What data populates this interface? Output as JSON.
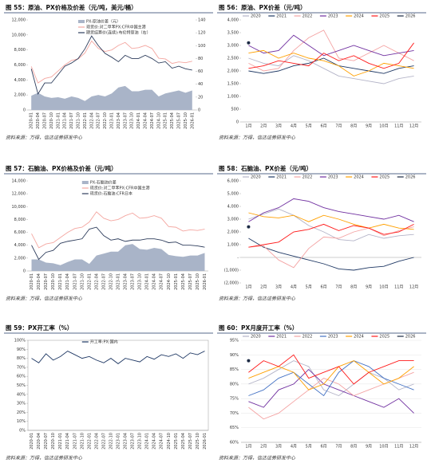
{
  "chart_data": [
    {
      "type": "line",
      "title": "图 55：原油、PX价格及价差（元/吨，美元/桶）",
      "source": "资料来源：万得，信达证券研发中心",
      "legend": "upper center",
      "grid": false,
      "categories": [
        "2020-01",
        "2020-04",
        "2020-07",
        "2020-10",
        "2021-01",
        "2021-04",
        "2021-07",
        "2021-10",
        "2022-01",
        "2022-04",
        "2022-07",
        "2022-10",
        "2023-01",
        "2023-04",
        "2023-07",
        "2023-10",
        "2024-01",
        "2024-04",
        "2024-07",
        "2024-10",
        "2025-01",
        "2025-04",
        "2025-07",
        "2025-10",
        "2026-01"
      ],
      "ylim": [
        0,
        12000
      ],
      "yticks": [
        0,
        {
          "value": 2000,
          "label": "2,000"
        },
        {
          "value": 4000,
          "label": "4,000"
        },
        {
          "value": 6000,
          "label": "6,000"
        },
        {
          "value": 8000,
          "label": "8,000"
        },
        {
          "value": 10000,
          "label": "10,000"
        },
        {
          "value": 12000,
          "label": "12,000"
        }
      ],
      "y2lim": [
        0,
        140
      ],
      "y2ticks": [
        0,
        20,
        40,
        60,
        80,
        100,
        120,
        140
      ],
      "series": [
        {
          "name": "PX-原油价差（元）",
          "type": "area",
          "color": "#a9b4c8",
          "values": [
            1900,
            2300,
            1800,
            1600,
            1700,
            1500,
            1800,
            1600,
            1200,
            1800,
            2000,
            1800,
            2200,
            3000,
            3200,
            2500,
            2500,
            2700,
            2700,
            1800,
            2200,
            2400,
            2600,
            2300,
            2600
          ]
        },
        {
          "name": "现货价:对二甲苯PX:CFR中国主港",
          "color": "#f4a6a0",
          "values": [
            5800,
            3600,
            4200,
            4400,
            5200,
            6000,
            6600,
            6800,
            7600,
            9200,
            8200,
            7800,
            8000,
            8600,
            9000,
            8200,
            8300,
            8600,
            8200,
            6900,
            6800,
            6200,
            6400,
            6300,
            6500
          ]
        },
        {
          "name": "期货结算价(连续):布伦特原油（右）",
          "color": "#2e3d5c",
          "axis": "y2",
          "values": [
            64,
            25,
            42,
            42,
            55,
            68,
            73,
            80,
            95,
            115,
            100,
            88,
            82,
            75,
            85,
            80,
            80,
            85,
            80,
            73,
            75,
            65,
            68,
            64,
            62
          ]
        }
      ]
    },
    {
      "type": "line",
      "title": "图 56：原油、PX价差（元/吨）",
      "source": "资料来源：万得，信达证券研发中心",
      "legend": "top",
      "grid": false,
      "categories": [
        "1月",
        "2月",
        "3月",
        "4月",
        "5月",
        "6月",
        "7月",
        "8月",
        "9月",
        "10月",
        "11月",
        "12月"
      ],
      "ylim": [
        0,
        4000
      ],
      "yticks": [
        0,
        500,
        {
          "value": 1000,
          "label": "1,000"
        },
        {
          "value": 1500,
          "label": "1,500"
        },
        {
          "value": 2000,
          "label": "2,000"
        },
        {
          "value": 2500,
          "label": "2,500"
        },
        {
          "value": 3000,
          "label": "3,000"
        },
        {
          "value": 3500,
          "label": "3,500"
        },
        {
          "value": 4000,
          "label": "4,000"
        }
      ],
      "series": [
        {
          "name": "2020",
          "color": "#b4b4c8",
          "values": [
            2500,
            2300,
            2200,
            2600,
            2400,
            2100,
            1800,
            1700,
            1600,
            1500,
            1700,
            1800
          ]
        },
        {
          "name": "2021",
          "color": "#1f3864",
          "values": [
            2000,
            1900,
            2000,
            2200,
            2300,
            2500,
            2200,
            2100,
            2000,
            1900,
            2100,
            2200
          ]
        },
        {
          "name": "2022",
          "color": "#f4a3a3",
          "values": [
            2300,
            2000,
            2100,
            2800,
            3300,
            3600,
            2500,
            2400,
            2700,
            3000,
            2700,
            2400
          ]
        },
        {
          "name": "2023",
          "color": "#7030a0",
          "values": [
            3000,
            2700,
            2800,
            3400,
            3000,
            2600,
            2800,
            3000,
            2800,
            2600,
            2700,
            2800
          ]
        },
        {
          "name": "2024",
          "color": "#ffa000",
          "values": [
            2700,
            2800,
            2500,
            2700,
            2500,
            2400,
            2200,
            1800,
            2000,
            2300,
            2200,
            2100
          ]
        },
        {
          "name": "2025",
          "color": "#ff1a1a",
          "values": [
            2100,
            2200,
            2400,
            2300,
            2200,
            2700,
            2400,
            2600,
            2300,
            2100,
            2300,
            3100
          ]
        },
        {
          "name": "2026",
          "color": "#1c2a44",
          "values": [
            3100,
            null,
            null,
            null,
            null,
            null,
            null,
            null,
            null,
            null,
            null,
            null
          ]
        }
      ]
    },
    {
      "type": "line",
      "title": "图 57：石脑油、PX价格及价差（元/吨）",
      "source": "资料来源：万得，信达证券研发中心",
      "legend": "upper center",
      "grid": false,
      "categories": [
        "2020-01",
        "2020-04",
        "2020-07",
        "2020-10",
        "2021-01",
        "2021-04",
        "2021-07",
        "2021-10",
        "2022-01",
        "2022-04",
        "2022-07",
        "2022-10",
        "2023-01",
        "2023-04",
        "2023-07",
        "2023-10",
        "2024-01",
        "2024-04",
        "2024-07",
        "2024-10",
        "2025-01",
        "2025-04",
        "2025-07",
        "2025-10",
        "2026-01"
      ],
      "ylim": [
        0,
        14000
      ],
      "yticks": [
        0,
        {
          "value": 2000,
          "label": "2,000"
        },
        {
          "value": 4000,
          "label": "4,000"
        },
        {
          "value": 6000,
          "label": "6,000"
        },
        {
          "value": 8000,
          "label": "8,000"
        },
        {
          "value": 10000,
          "label": "10,000"
        },
        {
          "value": 12000,
          "label": "12,000"
        },
        {
          "value": 14000,
          "label": "14,000"
        }
      ],
      "series": [
        {
          "name": "PX-石脑油价差",
          "type": "area",
          "color": "#a9b4c8",
          "values": [
            1800,
            1800,
            1300,
            1200,
            900,
            1400,
            1800,
            1800,
            1100,
            2400,
            2700,
            3000,
            3000,
            4000,
            4200,
            3400,
            3300,
            3600,
            3400,
            2500,
            2300,
            2200,
            2400,
            2400,
            2800
          ]
        },
        {
          "name": "现货价:对二甲苯PX:CFR中国主港",
          "color": "#f4a6a0",
          "values": [
            5800,
            3600,
            4200,
            4400,
            5200,
            6000,
            6600,
            6800,
            7600,
            9200,
            8200,
            7800,
            8000,
            8600,
            9000,
            8200,
            8300,
            8600,
            8200,
            6900,
            6800,
            6200,
            6400,
            6300,
            6500
          ]
        },
        {
          "name": "现货价:石脑油:CFR日本",
          "color": "#2e3d5c",
          "values": [
            4000,
            1800,
            2900,
            3200,
            4300,
            4600,
            4800,
            5000,
            6500,
            6800,
            5500,
            4800,
            5000,
            4600,
            4800,
            4800,
            5000,
            5000,
            4800,
            4400,
            4500,
            4000,
            4000,
            3900,
            3700
          ]
        }
      ]
    },
    {
      "type": "line",
      "title": "图 58：石脑油、PX价差（元/吨）",
      "source": "资料来源：万得，信达证券研发中心",
      "legend": "top",
      "grid": false,
      "categories": [
        "1月",
        "2月",
        "3月",
        "4月",
        "5月",
        "6月",
        "7月",
        "8月",
        "9月",
        "10月",
        "11月",
        "12月"
      ],
      "ylim": [
        -2000,
        6000
      ],
      "yticks": [
        {
          "value": -2000,
          "label": "(2,000)"
        },
        {
          "value": -1000,
          "label": "(1,000)"
        },
        {
          "value": 0,
          "label": "-"
        },
        {
          "value": 1000,
          "label": "1,000"
        },
        {
          "value": 2000,
          "label": "2,000"
        },
        {
          "value": 3000,
          "label": "3,000"
        },
        {
          "value": 4000,
          "label": "4,000"
        },
        {
          "value": 5000,
          "label": "5,000"
        },
        {
          "value": 6000,
          "label": "6,000"
        }
      ],
      "series": [
        {
          "name": "2020",
          "color": "#b4b4c8",
          "values": [
            3000,
            3400,
            3800,
            3300,
            2500,
            2000,
            1400,
            1300,
            1800,
            1500,
            1700,
            1800
          ]
        },
        {
          "name": "2021",
          "color": "#1f3864",
          "values": [
            1500,
            800,
            400,
            100,
            -200,
            -500,
            -900,
            -1000,
            -800,
            -700,
            -300,
            0
          ]
        },
        {
          "name": "2022",
          "color": "#f4a3a3",
          "values": [
            800,
            900,
            -200,
            -800,
            700,
            1600,
            1500,
            2000,
            2300,
            1700,
            2100,
            2400
          ]
        },
        {
          "name": "2023",
          "color": "#7030a0",
          "values": [
            2800,
            3500,
            3900,
            4600,
            4400,
            3900,
            3600,
            3400,
            3200,
            3000,
            3300,
            2800
          ]
        },
        {
          "name": "2024",
          "color": "#ffa000",
          "values": [
            3500,
            3200,
            3100,
            3300,
            2800,
            3300,
            3000,
            2600,
            2300,
            2600,
            2300,
            2200
          ]
        },
        {
          "name": "2025",
          "color": "#ff1a1a",
          "values": [
            800,
            1000,
            1200,
            2000,
            2200,
            2600,
            2100,
            2500,
            2300,
            1800,
            2000,
            2600
          ]
        },
        {
          "name": "2026",
          "color": "#1c2a44",
          "values": [
            2400,
            null,
            null,
            null,
            null,
            null,
            null,
            null,
            null,
            null,
            null,
            null
          ]
        }
      ]
    },
    {
      "type": "line",
      "title": "图 59：PX开工率（%）",
      "source": "资料来源：万得，信达证券研发中心",
      "legend": "upper center",
      "grid": false,
      "frame": true,
      "categories": [
        "2020-01",
        "2020-04",
        "2020-07",
        "2020-10",
        "2021-01",
        "2021-04",
        "2021-07",
        "2021-10",
        "2022-01",
        "2022-04",
        "2022-07",
        "2022-10",
        "2023-01",
        "2023-04",
        "2023-07",
        "2023-10",
        "2024-01",
        "2024-04",
        "2024-07",
        "2024-10",
        "2025-01",
        "2025-04",
        "2025-07",
        "2025-10",
        "2026-01"
      ],
      "ylim": [
        0,
        100
      ],
      "yticks": [
        {
          "value": 0,
          "label": "0%"
        },
        {
          "value": 10,
          "label": "10%"
        },
        {
          "value": 20,
          "label": "20%"
        },
        {
          "value": 30,
          "label": "30%"
        },
        {
          "value": 40,
          "label": "40%"
        },
        {
          "value": 50,
          "label": "50%"
        },
        {
          "value": 60,
          "label": "60%"
        },
        {
          "value": 70,
          "label": "70%"
        },
        {
          "value": 80,
          "label": "80%"
        },
        {
          "value": 90,
          "label": "90%"
        },
        {
          "value": 100,
          "label": "100%"
        }
      ],
      "series": [
        {
          "name": "开工率:PX:国内",
          "color": "#1f3864",
          "values": [
            80,
            75,
            85,
            78,
            82,
            88,
            84,
            80,
            82,
            78,
            75,
            80,
            74,
            80,
            78,
            76,
            82,
            79,
            84,
            82,
            85,
            80,
            86,
            84,
            88
          ]
        }
      ]
    },
    {
      "type": "line",
      "title": "图 60：PX月度开工率（%）",
      "source": "资料来源：万得，信达证券研发中心",
      "legend": "top",
      "grid": true,
      "categories": [
        "1月",
        "2月",
        "3月",
        "4月",
        "5月",
        "6月",
        "7月",
        "8月",
        "9月",
        "10月",
        "11月",
        "12月"
      ],
      "ylim": [
        60,
        95
      ],
      "yticks": [
        {
          "value": 60,
          "label": "60%"
        },
        {
          "value": 65,
          "label": "65%"
        },
        {
          "value": 70,
          "label": "70%"
        },
        {
          "value": 75,
          "label": "75%"
        },
        {
          "value": 80,
          "label": "80%"
        },
        {
          "value": 85,
          "label": "85%"
        },
        {
          "value": 90,
          "label": "90%"
        },
        {
          "value": 95,
          "label": "95%"
        }
      ],
      "series": [
        {
          "name": "2020",
          "color": "#b4b4c8",
          "values": [
            80,
            82,
            85,
            88,
            86,
            78,
            76,
            80,
            84,
            82,
            78,
            80
          ]
        },
        {
          "name": "2021",
          "color": "#7030a0",
          "values": [
            74,
            72,
            78,
            80,
            85,
            80,
            78,
            76,
            74,
            72,
            75,
            70
          ]
        },
        {
          "name": "2022",
          "color": "#f4a3a3",
          "values": [
            72,
            68,
            70,
            74,
            78,
            82,
            80,
            76,
            78,
            80,
            82,
            84
          ]
        },
        {
          "name": "2023",
          "color": "#4472c4",
          "values": [
            76,
            78,
            82,
            84,
            80,
            76,
            84,
            88,
            86,
            82,
            80,
            78
          ]
        },
        {
          "name": "2024",
          "color": "#ffa000",
          "values": [
            82,
            84,
            86,
            84,
            78,
            80,
            86,
            88,
            84,
            80,
            82,
            86
          ]
        },
        {
          "name": "2025",
          "color": "#ff1a1a",
          "values": [
            84,
            88,
            86,
            90,
            82,
            84,
            86,
            80,
            84,
            86,
            88,
            88
          ]
        },
        {
          "name": "2026",
          "color": "#1c2a44",
          "values": [
            88,
            null,
            null,
            null,
            null,
            null,
            null,
            null,
            null,
            null,
            null,
            null
          ]
        }
      ]
    }
  ]
}
